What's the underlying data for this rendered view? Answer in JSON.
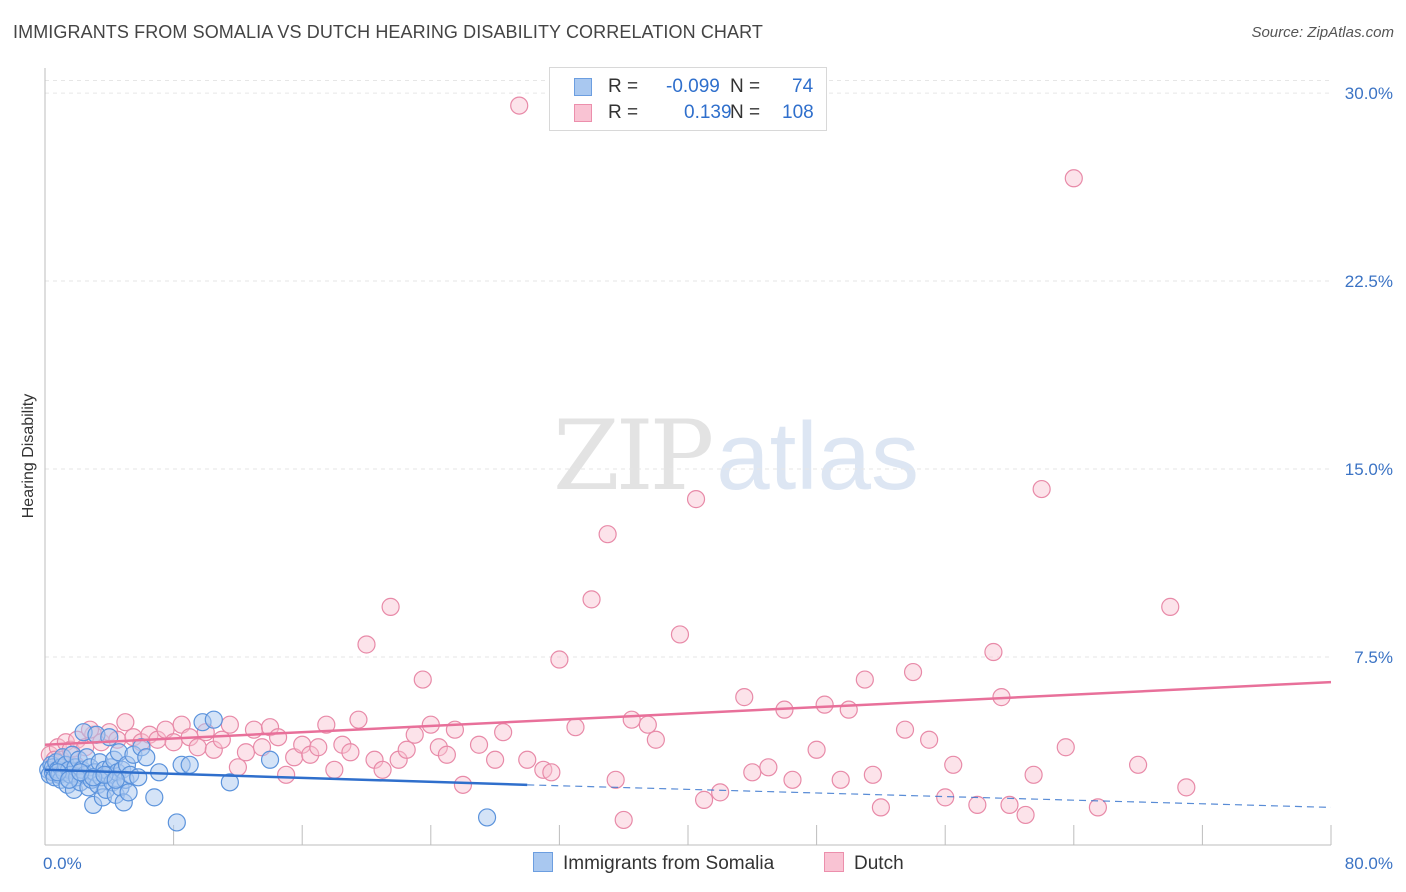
{
  "header": {
    "title": "IMMIGRANTS FROM SOMALIA VS DUTCH HEARING DISABILITY CORRELATION CHART",
    "source": "Source: ZipAtlas.com"
  },
  "watermark": {
    "zip": "ZIP",
    "atlas": "atlas"
  },
  "legend": {
    "rows": [
      {
        "r_label": "R =",
        "r_value": "-0.099",
        "n_label": "N =",
        "n_value": "74",
        "color": "#a9c8f0",
        "border": "#6c9ee0"
      },
      {
        "r_label": "R =",
        "r_value": "0.139",
        "n_label": "N =",
        "n_value": "108",
        "color": "#f9c3d3",
        "border": "#ec8fac"
      }
    ]
  },
  "bottom_legend": {
    "somalia": "Immigrants from Somalia",
    "dutch": "Dutch"
  },
  "colors": {
    "somalia_fill": "#a9c8f0",
    "somalia_stroke": "#5b93dc",
    "somalia_line": "#2f6fcc",
    "dutch_fill": "#f8c0d0",
    "dutch_stroke": "#e88aa8",
    "dutch_line": "#e8709a"
  },
  "chart_data": {
    "type": "scatter",
    "title": "IMMIGRANTS FROM SOMALIA VS DUTCH HEARING DISABILITY CORRELATION CHART",
    "ylabel": "Hearing Disability",
    "xlabel": "",
    "xlim": [
      0,
      80
    ],
    "ylim": [
      0,
      31
    ],
    "x_tick_labels": [
      "0.0%",
      "80.0%"
    ],
    "y_ticks": [
      7.5,
      15.0,
      22.5,
      30.0
    ],
    "y_tick_labels": [
      "7.5%",
      "15.0%",
      "22.5%",
      "30.0%"
    ],
    "grid": true,
    "series": [
      {
        "name": "Immigrants from Somalia",
        "trend": {
          "x0": 0,
          "y0": 3.0,
          "x1": 30,
          "y1": 2.4,
          "dash_to_x": 80,
          "dash_to_y": 1.5
        },
        "points": [
          [
            0.2,
            3.0
          ],
          [
            0.3,
            2.8
          ],
          [
            0.4,
            3.2
          ],
          [
            0.5,
            2.9
          ],
          [
            0.5,
            3.1
          ],
          [
            0.6,
            2.7
          ],
          [
            0.7,
            3.3
          ],
          [
            0.8,
            3.0
          ],
          [
            0.9,
            2.8
          ],
          [
            1.0,
            3.1
          ],
          [
            1.0,
            2.6
          ],
          [
            1.1,
            3.5
          ],
          [
            1.2,
            2.9
          ],
          [
            1.3,
            3.2
          ],
          [
            1.4,
            2.4
          ],
          [
            1.5,
            3.0
          ],
          [
            1.6,
            2.8
          ],
          [
            1.7,
            3.6
          ],
          [
            1.8,
            2.2
          ],
          [
            1.9,
            3.1
          ],
          [
            2.0,
            2.7
          ],
          [
            2.1,
            3.4
          ],
          [
            2.2,
            2.5
          ],
          [
            2.3,
            3.0
          ],
          [
            2.4,
            4.5
          ],
          [
            2.5,
            2.8
          ],
          [
            2.6,
            3.5
          ],
          [
            2.7,
            2.3
          ],
          [
            2.8,
            3.1
          ],
          [
            2.9,
            2.6
          ],
          [
            3.0,
            1.6
          ],
          [
            3.1,
            2.9
          ],
          [
            3.2,
            4.4
          ],
          [
            3.3,
            2.4
          ],
          [
            3.4,
            3.3
          ],
          [
            3.5,
            2.7
          ],
          [
            3.6,
            1.9
          ],
          [
            3.7,
            3.0
          ],
          [
            3.8,
            2.2
          ],
          [
            3.9,
            2.8
          ],
          [
            4.0,
            4.3
          ],
          [
            4.1,
            3.1
          ],
          [
            4.2,
            2.5
          ],
          [
            4.3,
            3.4
          ],
          [
            4.4,
            2.0
          ],
          [
            4.5,
            2.9
          ],
          [
            4.6,
            3.7
          ],
          [
            4.7,
            2.3
          ],
          [
            4.8,
            3.0
          ],
          [
            4.9,
            1.7
          ],
          [
            5.0,
            2.6
          ],
          [
            5.1,
            3.2
          ],
          [
            5.2,
            2.1
          ],
          [
            5.3,
            2.8
          ],
          [
            5.5,
            3.6
          ],
          [
            5.8,
            2.7
          ],
          [
            6.0,
            3.9
          ],
          [
            6.3,
            3.5
          ],
          [
            6.8,
            1.9
          ],
          [
            7.1,
            2.9
          ],
          [
            8.2,
            0.9
          ],
          [
            8.5,
            3.2
          ],
          [
            9.0,
            3.2
          ],
          [
            9.8,
            4.9
          ],
          [
            10.5,
            5.0
          ],
          [
            11.5,
            2.5
          ],
          [
            14.0,
            3.4
          ],
          [
            27.5,
            1.1
          ],
          [
            0.8,
            2.9
          ],
          [
            1.5,
            2.6
          ],
          [
            2.2,
            2.9
          ],
          [
            3.0,
            2.7
          ],
          [
            3.7,
            2.8
          ],
          [
            4.4,
            2.6
          ]
        ]
      },
      {
        "name": "Dutch",
        "trend": {
          "x0": 0,
          "y0": 4.0,
          "x1": 80,
          "y1": 6.5
        },
        "points": [
          [
            0.3,
            3.6
          ],
          [
            0.5,
            2.9
          ],
          [
            0.8,
            3.9
          ],
          [
            1.0,
            3.4
          ],
          [
            1.3,
            4.1
          ],
          [
            1.6,
            3.8
          ],
          [
            2.0,
            4.2
          ],
          [
            2.5,
            3.9
          ],
          [
            3.0,
            4.4
          ],
          [
            3.5,
            4.1
          ],
          [
            4.0,
            4.5
          ],
          [
            4.5,
            4.2
          ],
          [
            5.0,
            4.9
          ],
          [
            5.5,
            4.3
          ],
          [
            6.0,
            4.1
          ],
          [
            6.5,
            4.4
          ],
          [
            7.0,
            4.2
          ],
          [
            7.5,
            4.6
          ],
          [
            8.0,
            4.1
          ],
          [
            8.5,
            4.8
          ],
          [
            9.0,
            4.3
          ],
          [
            9.5,
            3.9
          ],
          [
            10.0,
            4.5
          ],
          [
            10.5,
            3.8
          ],
          [
            11.0,
            4.2
          ],
          [
            11.5,
            4.8
          ],
          [
            12.0,
            3.1
          ],
          [
            12.5,
            3.7
          ],
          [
            13.0,
            4.6
          ],
          [
            13.5,
            3.9
          ],
          [
            14.0,
            4.7
          ],
          [
            14.5,
            4.3
          ],
          [
            15.0,
            2.8
          ],
          [
            15.5,
            3.5
          ],
          [
            16.0,
            4.0
          ],
          [
            16.5,
            3.6
          ],
          [
            17.0,
            3.9
          ],
          [
            17.5,
            4.8
          ],
          [
            18.0,
            3.0
          ],
          [
            18.5,
            4.0
          ],
          [
            19.0,
            3.7
          ],
          [
            19.5,
            5.0
          ],
          [
            20.0,
            8.0
          ],
          [
            20.5,
            3.4
          ],
          [
            21.0,
            3.0
          ],
          [
            21.5,
            9.5
          ],
          [
            22.0,
            3.4
          ],
          [
            22.5,
            3.8
          ],
          [
            23.0,
            4.4
          ],
          [
            23.5,
            6.6
          ],
          [
            24.0,
            4.8
          ],
          [
            24.5,
            3.9
          ],
          [
            25.0,
            3.6
          ],
          [
            25.5,
            4.6
          ],
          [
            26.0,
            2.4
          ],
          [
            27.0,
            4.0
          ],
          [
            28.0,
            3.4
          ],
          [
            28.5,
            4.5
          ],
          [
            29.5,
            29.5
          ],
          [
            30.0,
            3.4
          ],
          [
            31.0,
            3.0
          ],
          [
            31.5,
            2.9
          ],
          [
            32.0,
            7.4
          ],
          [
            33.0,
            4.7
          ],
          [
            34.0,
            9.8
          ],
          [
            35.0,
            12.4
          ],
          [
            35.5,
            2.6
          ],
          [
            36.0,
            1.0
          ],
          [
            36.5,
            5.0
          ],
          [
            37.5,
            4.8
          ],
          [
            38.0,
            4.2
          ],
          [
            39.5,
            8.4
          ],
          [
            40.5,
            13.8
          ],
          [
            41.0,
            1.8
          ],
          [
            42.0,
            2.1
          ],
          [
            43.5,
            5.9
          ],
          [
            44.0,
            2.9
          ],
          [
            45.0,
            3.1
          ],
          [
            46.0,
            5.4
          ],
          [
            46.5,
            2.6
          ],
          [
            48.0,
            3.8
          ],
          [
            48.5,
            5.6
          ],
          [
            49.5,
            2.6
          ],
          [
            50.0,
            5.4
          ],
          [
            51.0,
            6.6
          ],
          [
            51.5,
            2.8
          ],
          [
            52.0,
            1.5
          ],
          [
            53.5,
            4.6
          ],
          [
            54.0,
            6.9
          ],
          [
            55.0,
            4.2
          ],
          [
            56.0,
            1.9
          ],
          [
            56.5,
            3.2
          ],
          [
            58.0,
            1.6
          ],
          [
            59.0,
            7.7
          ],
          [
            59.5,
            5.9
          ],
          [
            60.0,
            1.6
          ],
          [
            61.0,
            1.2
          ],
          [
            61.5,
            2.8
          ],
          [
            62.0,
            14.2
          ],
          [
            63.5,
            3.9
          ],
          [
            64.0,
            26.6
          ],
          [
            65.5,
            1.5
          ],
          [
            68.0,
            3.2
          ],
          [
            70.0,
            9.5
          ],
          [
            71.0,
            2.3
          ],
          [
            0.6,
            3.4
          ],
          [
            1.9,
            3.2
          ],
          [
            2.8,
            4.6
          ]
        ]
      }
    ]
  }
}
